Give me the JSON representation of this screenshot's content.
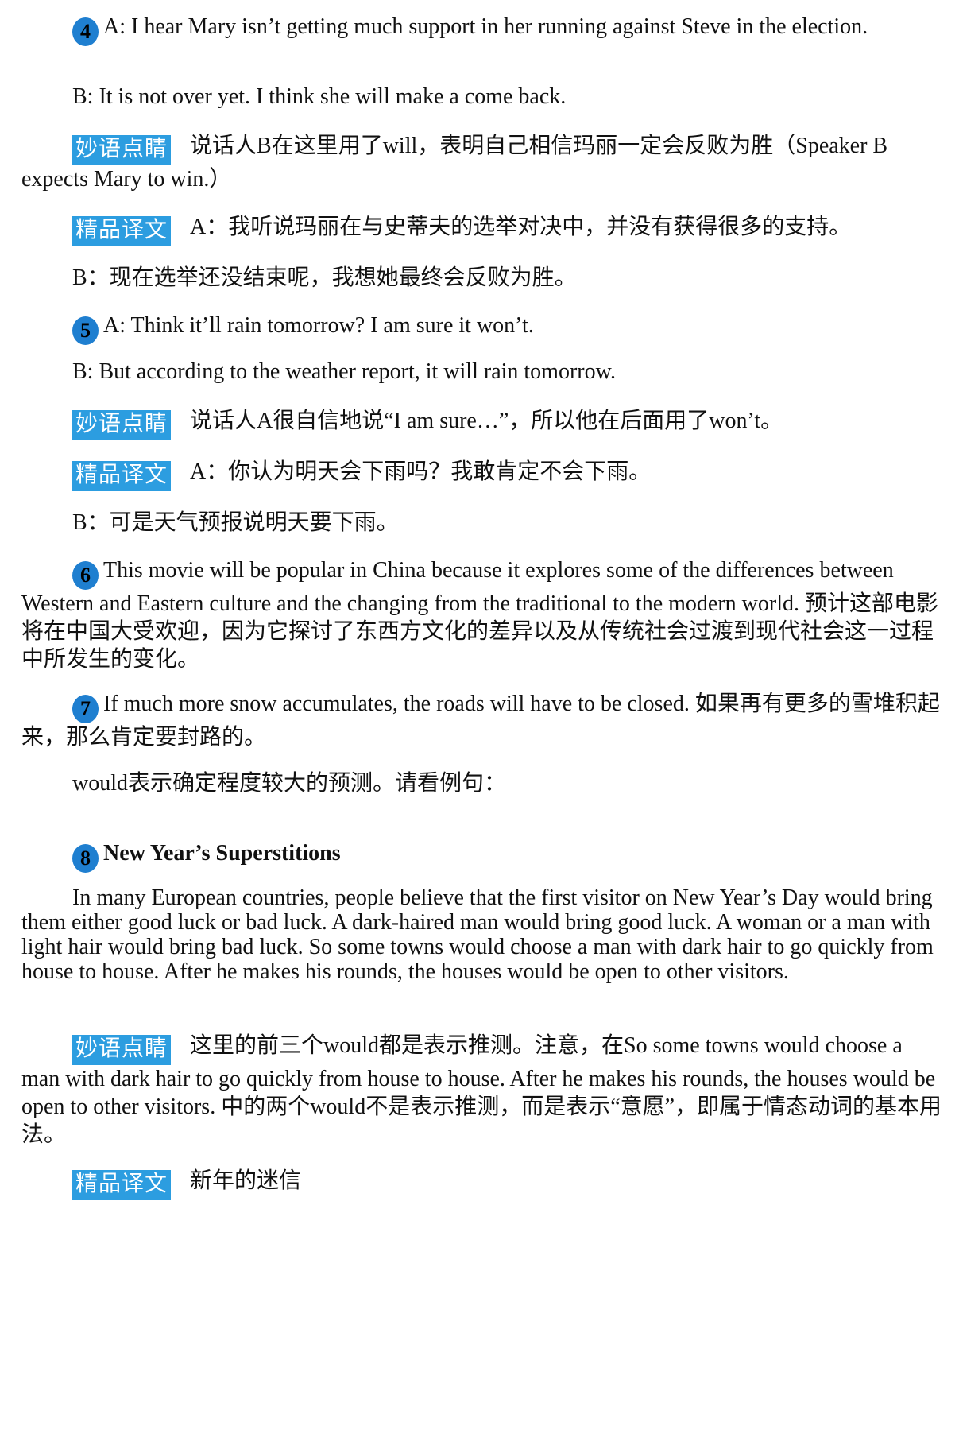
{
  "tags": {
    "remark": "妙语点睛",
    "translation": "精品译文"
  },
  "item4": {
    "number": "4",
    "a": "A: I hear Mary isn’t getting much support in her running against Steve in the election.",
    "b": "B: It is not over yet. I think she will make a come back.",
    "remark": "说话人B在这里用了will，表明自己相信玛丽一定会反败为胜（Speaker B expects Mary to win.）",
    "trans_a": "A：我听说玛丽在与史蒂夫的选举对决中，并没有获得很多的支持。",
    "trans_b": "B：现在选举还没结束呢，我想她最终会反败为胜。"
  },
  "item5": {
    "number": "5",
    "a": "A: Think it’ll rain tomorrow? I am sure it won’t.",
    "b": "B: But according to the weather report, it will rain tomorrow.",
    "remark": "说话人A很自信地说“I am sure…”，所以他在后面用了won’t。",
    "trans_a": "A：你认为明天会下雨吗？我敢肯定不会下雨。",
    "trans_b": "B：可是天气预报说明天要下雨。"
  },
  "item6": {
    "number": "6",
    "text": "This movie will be popular in China because it explores some of the differences between Western and Eastern culture and the changing from the traditional to the modern world. 预计这部电影将在中国大受欢迎，因为它探讨了东西方文化的差异以及从传统社会过渡到现代社会这一过程中所发生的变化。"
  },
  "item7": {
    "number": "7",
    "text": "If much more snow accumulates, the roads will have to be closed. 如果再有更多的雪堆积起来，那么肯定要封路的。"
  },
  "would_intro": "would表示确定程度较大的预测。请看例句：",
  "item8": {
    "number": "8",
    "title": "New Year’s Superstitions",
    "paragraph": "In many European countries, people believe that the first visitor on New Year’s Day would bring them either good luck or bad luck. A dark-haired man would bring good luck. A woman or a man with light hair would bring bad luck. So some towns would choose a man with dark hair to go quickly from house to house. After he makes his rounds, the houses would be open to other visitors.",
    "remark": "这里的前三个would都是表示推测。注意，在So some towns would choose a man with dark hair to go quickly from house to house. After he makes his rounds, the houses would be open to other visitors. 中的两个would不是表示推测，而是表示“意愿”，即属于情态动词的基本用法。",
    "trans": "新年的迷信"
  }
}
